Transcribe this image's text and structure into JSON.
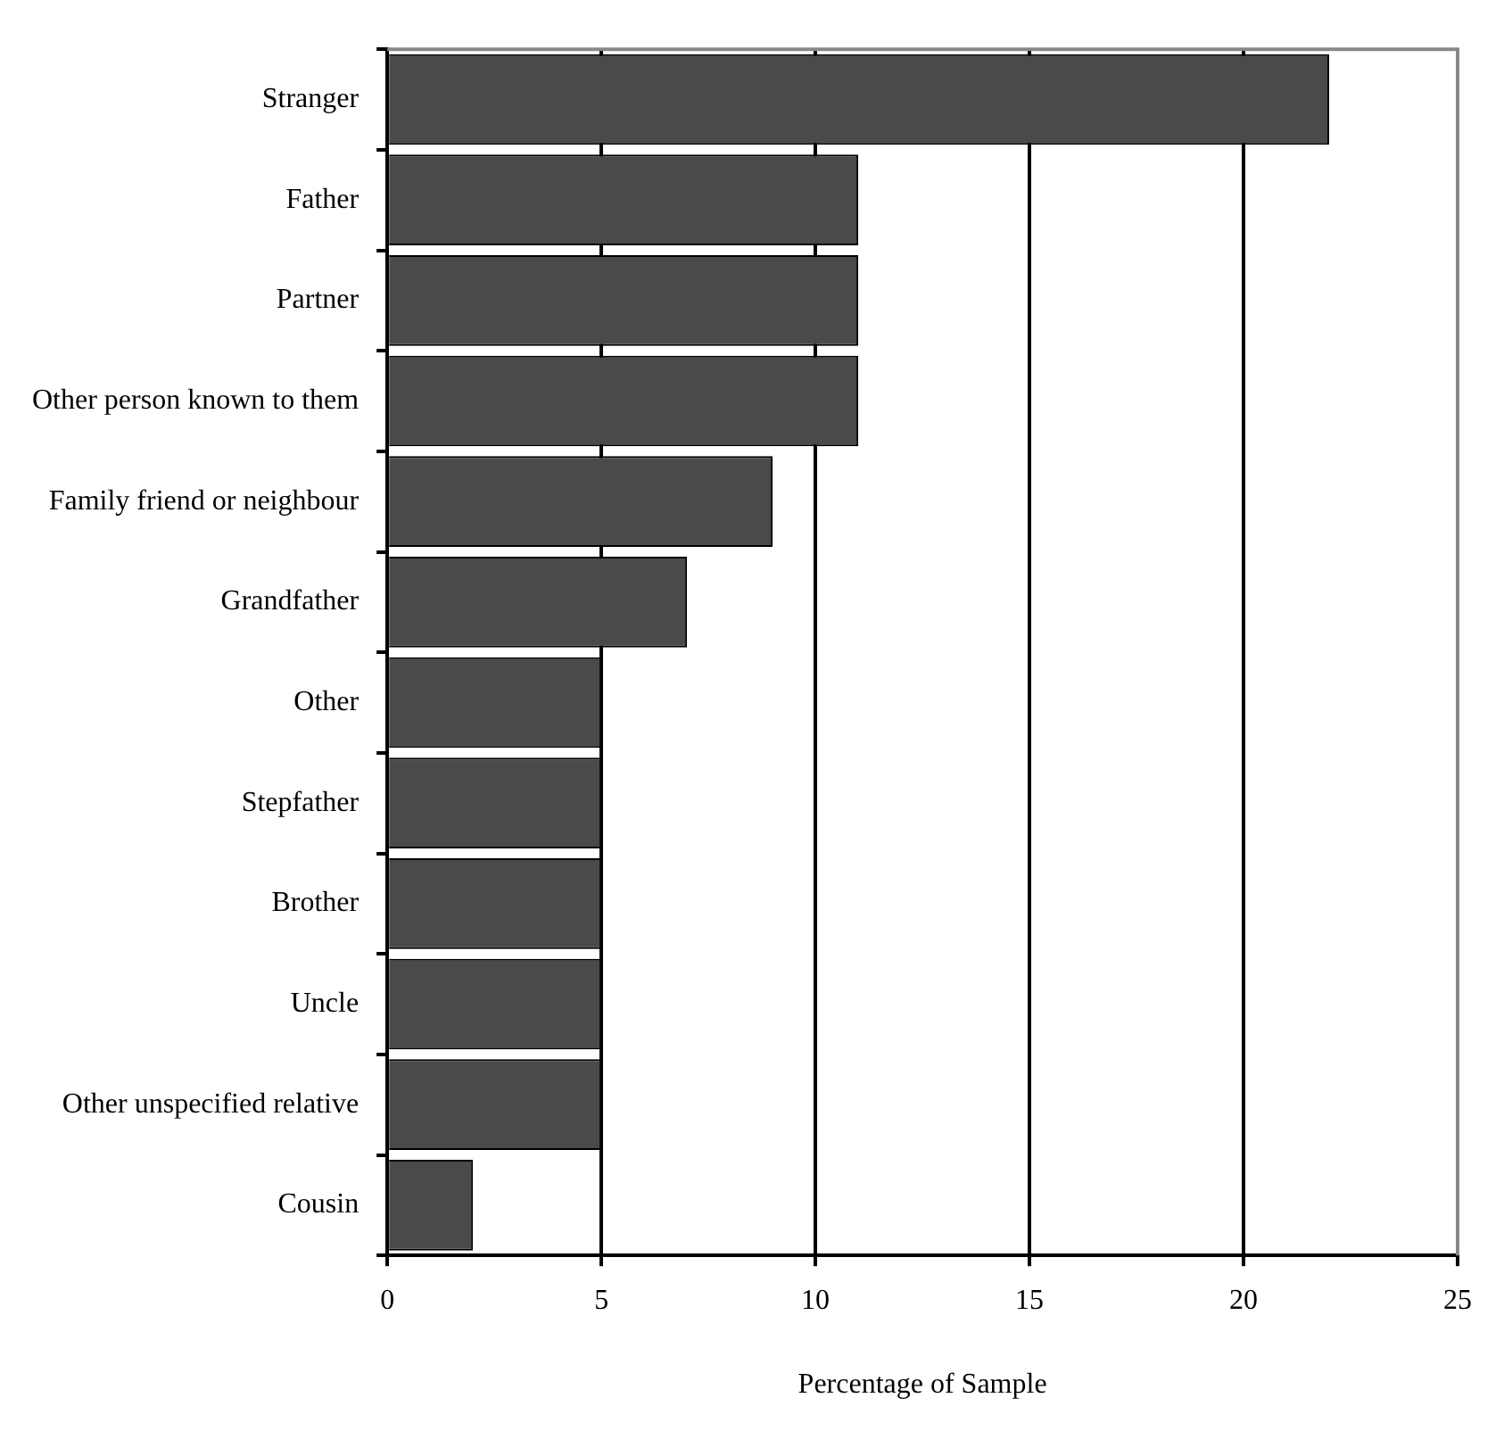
{
  "chart_data": {
    "type": "bar",
    "orientation": "horizontal",
    "xlabel": "Percentage of Sample",
    "categories": [
      "Stranger",
      "Father",
      "Partner",
      "Other person known to them",
      "Family friend or neighbour",
      "Grandfather",
      "Other",
      "Stepfather",
      "Brother",
      "Uncle",
      "Other unspecified relative",
      "Cousin"
    ],
    "values": [
      22,
      11,
      11,
      11,
      9,
      7,
      5,
      5,
      5,
      5,
      5,
      2
    ],
    "color": "#4a4a4a",
    "xlim": [
      0,
      25
    ],
    "xticks": [
      0,
      5,
      10,
      15,
      20,
      25
    ],
    "grid": "x",
    "legend": false
  }
}
